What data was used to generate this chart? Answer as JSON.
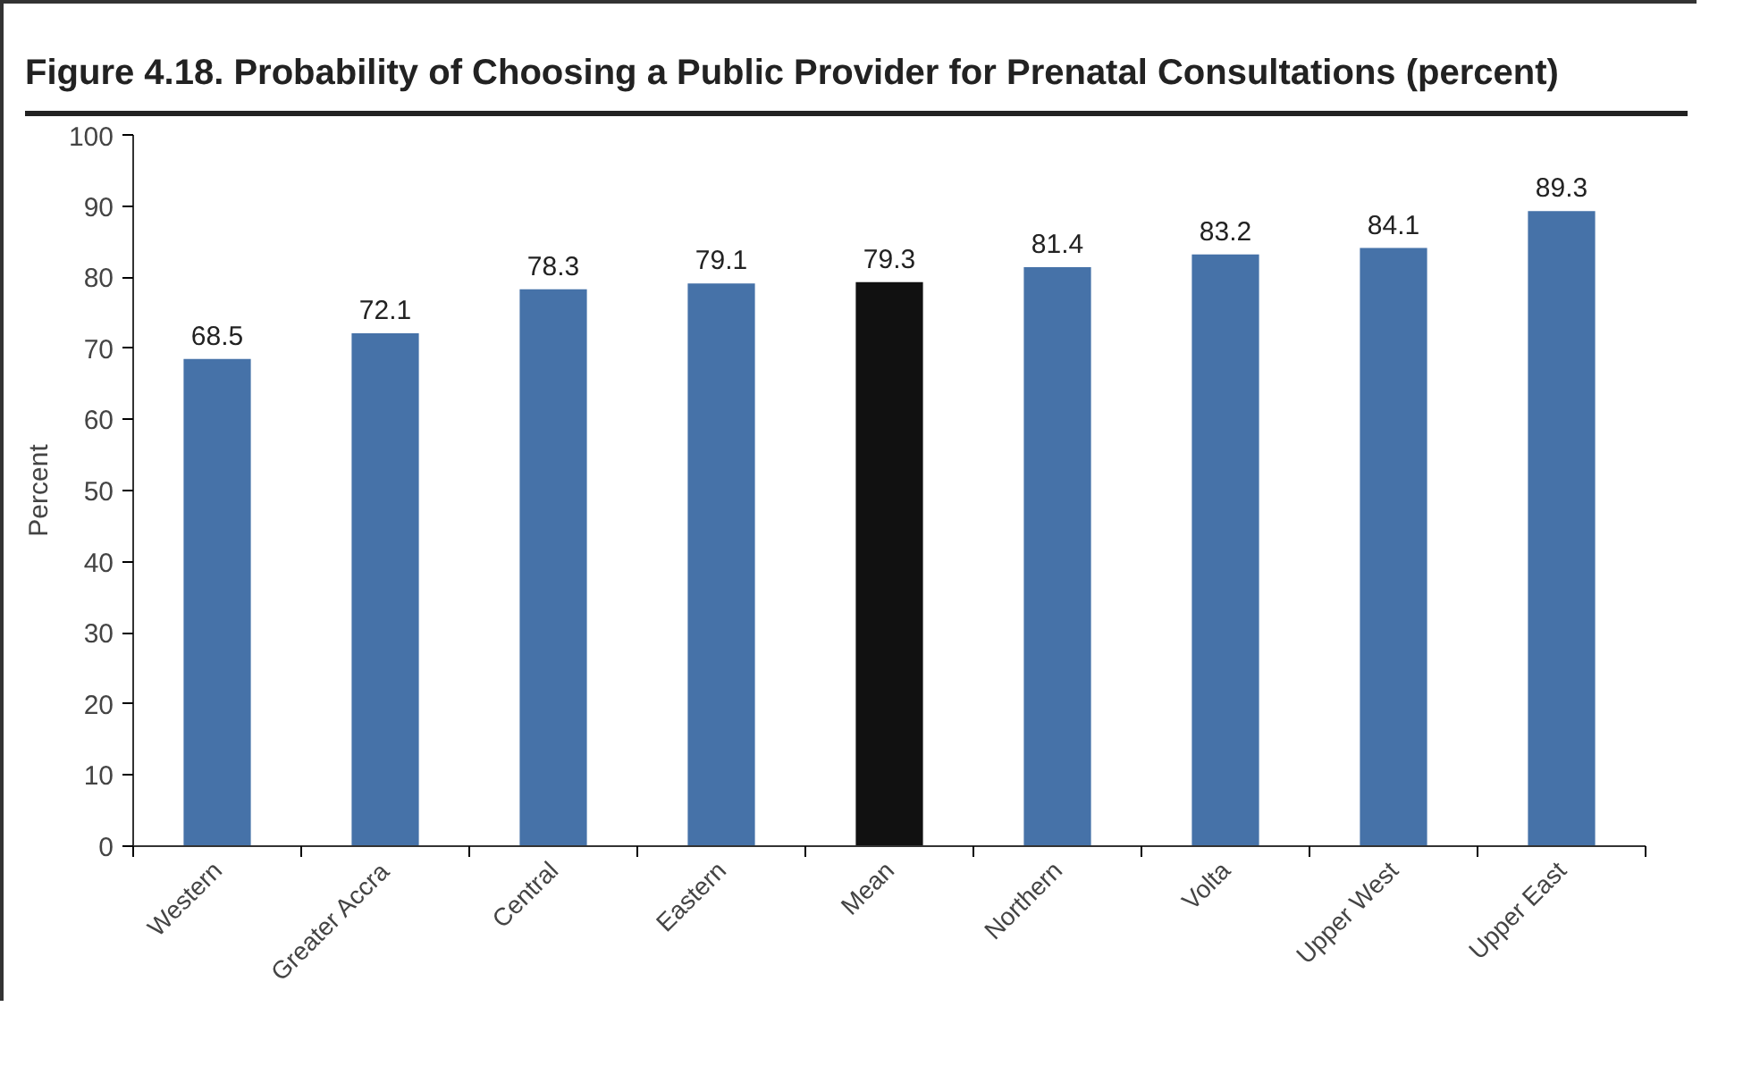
{
  "chart_data": {
    "type": "bar",
    "title": "Figure 4.18. Probability of Choosing a Public Provider for Prenatal Consultations (percent)",
    "ylabel": "Percent",
    "categories": [
      "Western",
      "Greater Accra",
      "Central",
      "Eastern",
      "Mean",
      "Northern",
      "Volta",
      "Upper West",
      "Upper East"
    ],
    "values": [
      68.5,
      72.1,
      78.3,
      79.1,
      79.3,
      81.4,
      83.2,
      84.1,
      89.3
    ],
    "colors": [
      "#4672a8",
      "#4672a8",
      "#4672a8",
      "#4672a8",
      "#111111",
      "#4672a8",
      "#4672a8",
      "#4672a8",
      "#4672a8"
    ],
    "ylim": [
      0,
      100
    ],
    "yticks": [
      0,
      10,
      20,
      30,
      40,
      50,
      60,
      70,
      80,
      90,
      100
    ],
    "data_labels": true,
    "grid": false
  }
}
